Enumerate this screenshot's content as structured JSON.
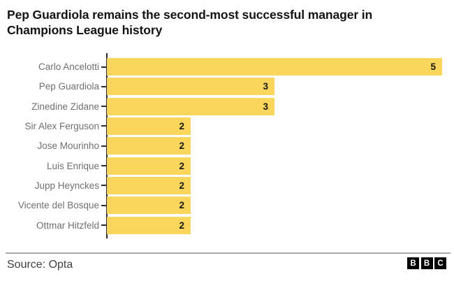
{
  "header": {
    "title": "Pep Guardiola remains the second-most successful manager in Champions League history",
    "title_line1": "Pep Guardiola remains the second-most successful manager in",
    "title_line2": "Champions League history"
  },
  "chart_data": {
    "type": "bar",
    "orientation": "horizontal",
    "title": "Pep Guardiola remains the second-most successful manager in Champions League history",
    "categories": [
      "Carlo Ancelotti",
      "Pep Guardiola",
      "Zinedine Zidane",
      "Sir Alex Ferguson",
      "Jose Mourinho",
      "Luis Enrique",
      "Jupp Heynckes",
      "Vicente del Bosque",
      "Ottmar Hitzfeld"
    ],
    "values": [
      5,
      3,
      3,
      2,
      2,
      2,
      2,
      2,
      2
    ],
    "value_labels": [
      "5",
      "3",
      "3",
      "2",
      "2",
      "2",
      "2",
      "2",
      "2"
    ],
    "xlabel": "",
    "ylabel": "",
    "xlim": [
      1,
      5
    ],
    "grid": false,
    "legend": "none",
    "value_labels_position": "inside-end"
  },
  "footer": {
    "source": "Source: Opta",
    "logo_letters": [
      "B",
      "B",
      "C"
    ]
  },
  "colors": {
    "bar": "#FBD65D",
    "title_text": "#141414",
    "category_label": "#6f6f6f",
    "value_label": "#161616",
    "axis": "#2b2b2b",
    "divider": "#ababab",
    "source_text": "#404040",
    "logo_bg": "#000000",
    "logo_text": "#ffffff"
  }
}
